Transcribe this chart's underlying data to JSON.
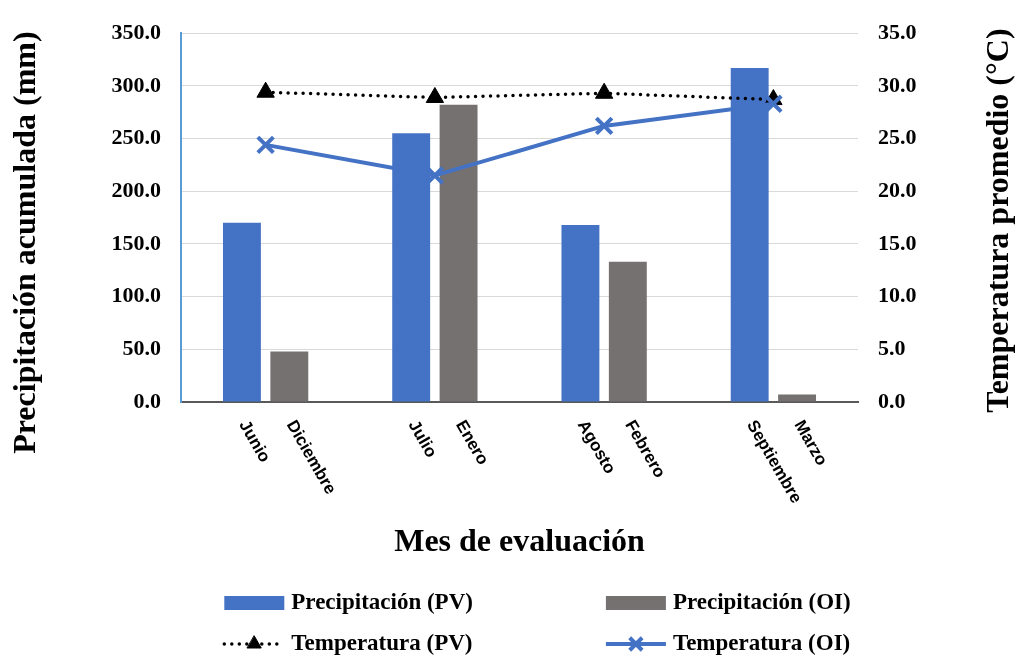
{
  "chart_data": {
    "type": "bar",
    "categories": [
      "Junio Diciembre",
      "Julio Enero",
      "Agosto Febrero",
      "Septiembre Marzo"
    ],
    "series": [
      {
        "name": "Precipitación (PV)",
        "color": "#4472c4",
        "values": [
          170,
          255,
          168,
          317
        ]
      },
      {
        "name": "Precipitación (OI)",
        "color": "#767171",
        "values": [
          48,
          282,
          133,
          7
        ]
      },
      {
        "name": "Temperatura (PV)",
        "type": "line",
        "axis": "y2",
        "color": "#000000",
        "marker": "triangle",
        "line_style": "dotted",
        "values": [
          29.4,
          28.9,
          29.3,
          28.7
        ]
      },
      {
        "name": "Temperatura (OI)",
        "type": "line",
        "axis": "y2",
        "color": "#4472c4",
        "marker": "cross",
        "line_style": "solid",
        "values": [
          24.4,
          21.5,
          26.2,
          28.3
        ]
      }
    ],
    "xlabel": "Mes de evaluación",
    "ylabel": "Precipitación acumulada (mm)",
    "y2label": "Temperatura promedio (°C)",
    "ylim": [
      0,
      350
    ],
    "yticks": [
      {
        "value": 0,
        "label": "0.0"
      },
      {
        "value": 50,
        "label": "50.0"
      },
      {
        "value": 100,
        "label": "100.0"
      },
      {
        "value": 150,
        "label": "150.0"
      },
      {
        "value": 200,
        "label": "200.0"
      },
      {
        "value": 250,
        "label": "250.0"
      },
      {
        "value": 300,
        "label": "300.0"
      },
      {
        "value": 350,
        "label": "350.0"
      }
    ],
    "y2lim": [
      0,
      35
    ],
    "y2ticks": [
      {
        "value": 0,
        "label": "0.0"
      },
      {
        "value": 5,
        "label": "5.0"
      },
      {
        "value": 10,
        "label": "10.0"
      },
      {
        "value": 15,
        "label": "15.0"
      },
      {
        "value": 20,
        "label": "20.0"
      },
      {
        "value": 25,
        "label": "25.0"
      },
      {
        "value": 30,
        "label": "30.0"
      },
      {
        "value": 35,
        "label": "35.0"
      }
    ],
    "grid": "y",
    "legend": "bottom"
  }
}
